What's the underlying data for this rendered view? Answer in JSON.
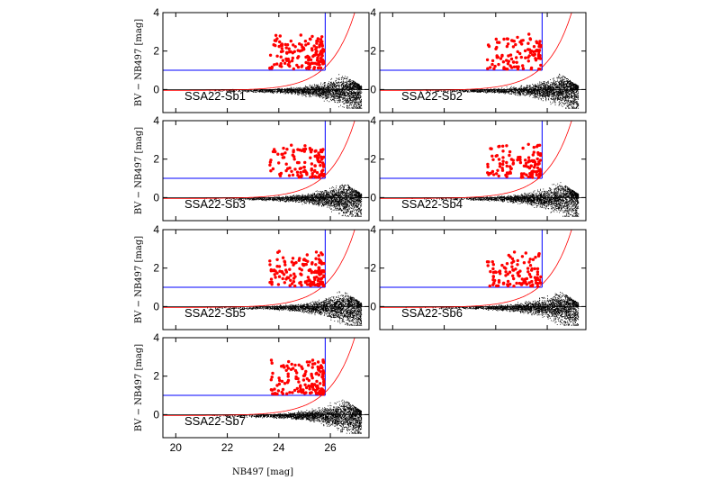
{
  "figure": {
    "x_axis_label": "NB497 [mag]",
    "y_axis_label": "BV − NB497 [mag]"
  },
  "chart_data": {
    "type": "scatter",
    "xlim": [
      19.5,
      27.5
    ],
    "ylim": [
      -1.2,
      4
    ],
    "x_ticks": [
      "20",
      "22",
      "24",
      "26"
    ],
    "y_ticks": [
      "0",
      "2",
      "4"
    ],
    "color_cut": 1.0,
    "magnitude_limit": 25.8,
    "colors": {
      "field": "#000000",
      "selected": "#ff0000",
      "cut_lines": "#0000ff",
      "limit_curve": "#ff0000"
    },
    "panels": [
      {
        "name": "SSA22-Sb1",
        "selected_count": 150
      },
      {
        "name": "SSA22-Sb2",
        "selected_count": 110
      },
      {
        "name": "SSA22-Sb3",
        "selected_count": 120
      },
      {
        "name": "SSA22-Sb4",
        "selected_count": 120
      },
      {
        "name": "SSA22-Sb5",
        "selected_count": 150
      },
      {
        "name": "SSA22-Sb6",
        "selected_count": 110
      },
      {
        "name": "SSA22-Sb7",
        "selected_count": 150
      }
    ]
  }
}
